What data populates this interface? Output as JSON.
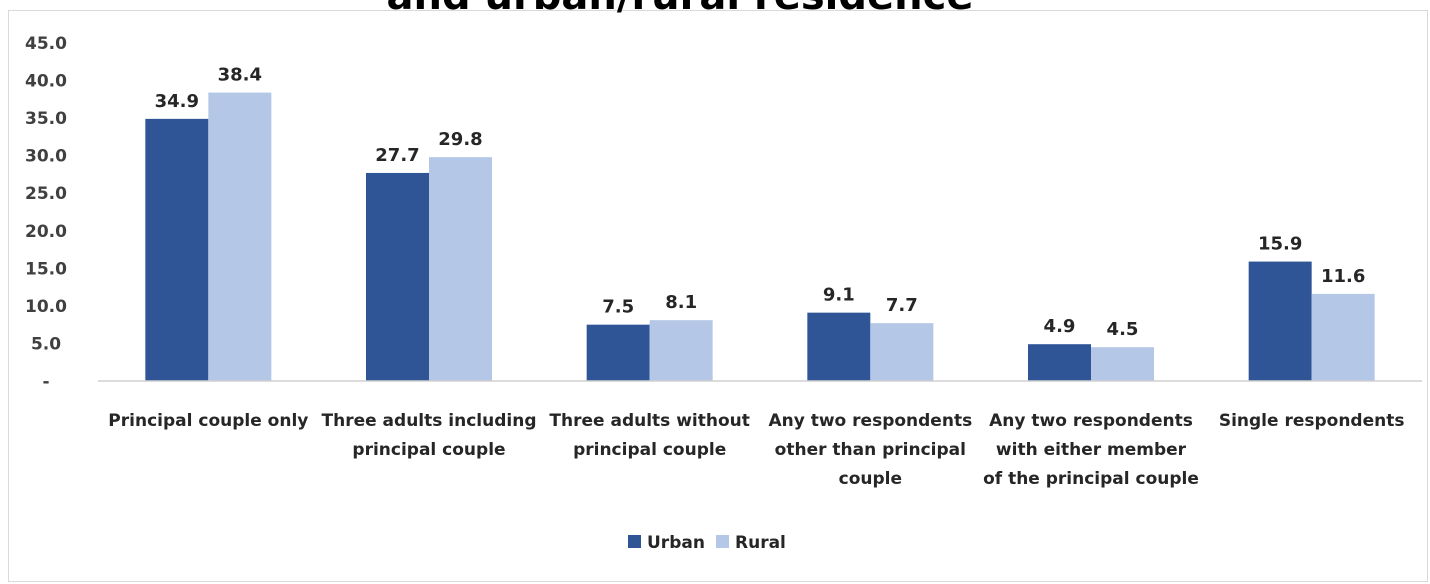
{
  "chart_data": {
    "type": "bar",
    "title": "and urban/rural residence",
    "categories": [
      [
        "Principal couple only"
      ],
      [
        "Three adults including",
        "principal couple"
      ],
      [
        "Three adults without",
        "principal couple"
      ],
      [
        "Any two respondents",
        "other than principal",
        "couple"
      ],
      [
        "Any two respondents",
        "with either member",
        "of the principal couple"
      ],
      [
        "Single respondents"
      ]
    ],
    "series": [
      {
        "name": "Urban",
        "color": "#2f5597",
        "values": [
          34.9,
          27.7,
          7.5,
          9.1,
          4.9,
          15.9
        ],
        "labels": [
          "34.9",
          "27.7",
          "7.5",
          "9.1",
          "4.9",
          "15.9"
        ]
      },
      {
        "name": "Rural",
        "color": "#b4c7e7",
        "values": [
          38.4,
          29.8,
          8.1,
          7.7,
          4.5,
          11.6
        ],
        "labels": [
          "38.4",
          "29.8",
          "8.1",
          "7.7",
          "4.5",
          "11.6"
        ]
      }
    ],
    "yticks": [
      {
        "value": 0,
        "label": "-"
      },
      {
        "value": 5,
        "label": "5.0"
      },
      {
        "value": 10,
        "label": "10.0"
      },
      {
        "value": 15,
        "label": "15.0"
      },
      {
        "value": 20,
        "label": "20.0"
      },
      {
        "value": 25,
        "label": "25.0"
      },
      {
        "value": 30,
        "label": "30.0"
      },
      {
        "value": 35,
        "label": "35.0"
      },
      {
        "value": 40,
        "label": "40.0"
      },
      {
        "value": 45,
        "label": "45.0"
      }
    ],
    "ylim": [
      0,
      45
    ],
    "grid": false,
    "legend": "bottom-center",
    "xlabel": "",
    "ylabel": ""
  }
}
